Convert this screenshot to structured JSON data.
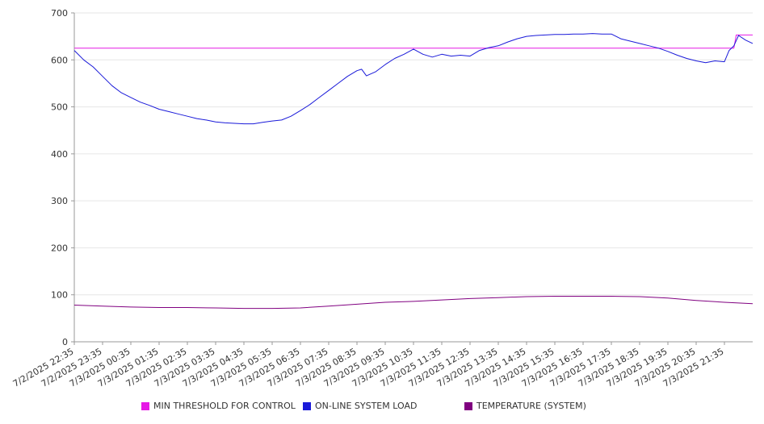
{
  "chart_data": {
    "type": "line",
    "title": "",
    "xlabel": "",
    "ylabel": "",
    "ylim": [
      0,
      700
    ],
    "y_ticks": [
      0,
      100,
      200,
      300,
      400,
      500,
      600,
      700
    ],
    "x_tick_labels": [
      "7/2/2025 22:35",
      "7/2/2025 23:35",
      "7/3/2025 00:35",
      "7/3/2025 01:35",
      "7/3/2025 02:35",
      "7/3/2025 03:35",
      "7/3/2025 04:35",
      "7/3/2025 05:35",
      "7/3/2025 06:35",
      "7/3/2025 07:35",
      "7/3/2025 08:35",
      "7/3/2025 09:35",
      "7/3/2025 10:35",
      "7/3/2025 11:35",
      "7/3/2025 12:35",
      "7/3/2025 13:35",
      "7/3/2025 14:35",
      "7/3/2025 15:35",
      "7/3/2025 16:35",
      "7/3/2025 17:35",
      "7/3/2025 18:35",
      "7/3/2025 19:35",
      "7/3/2025 20:35",
      "7/3/2025 21:35"
    ],
    "grid": true,
    "legend_position": "bottom",
    "series": [
      {
        "name": "MIN THRESHOLD FOR CONTROL",
        "color": "#e619e6",
        "points": [
          [
            "7/2/2025 22:35",
            625
          ],
          [
            "7/3/2025 21:35",
            625
          ],
          [
            "7/3/2025 21:55",
            625
          ],
          [
            "7/3/2025 22:00",
            653
          ],
          [
            "7/3/2025 22:35",
            653
          ]
        ]
      },
      {
        "name": "ON-LINE SYSTEM LOAD",
        "color": "#1a1ad9",
        "points": [
          [
            "7/2/2025 22:35",
            620
          ],
          [
            "7/2/2025 22:55",
            600
          ],
          [
            "7/2/2025 23:15",
            585
          ],
          [
            "7/2/2025 23:35",
            565
          ],
          [
            "7/2/2025 23:55",
            545
          ],
          [
            "7/3/2025 00:15",
            530
          ],
          [
            "7/3/2025 00:35",
            520
          ],
          [
            "7/3/2025 00:55",
            510
          ],
          [
            "7/3/2025 01:15",
            503
          ],
          [
            "7/3/2025 01:35",
            495
          ],
          [
            "7/3/2025 01:55",
            490
          ],
          [
            "7/3/2025 02:15",
            485
          ],
          [
            "7/3/2025 02:35",
            480
          ],
          [
            "7/3/2025 02:55",
            475
          ],
          [
            "7/3/2025 03:15",
            472
          ],
          [
            "7/3/2025 03:35",
            468
          ],
          [
            "7/3/2025 03:55",
            466
          ],
          [
            "7/3/2025 04:15",
            465
          ],
          [
            "7/3/2025 04:35",
            464
          ],
          [
            "7/3/2025 04:55",
            464
          ],
          [
            "7/3/2025 05:15",
            467
          ],
          [
            "7/3/2025 05:35",
            470
          ],
          [
            "7/3/2025 05:55",
            472
          ],
          [
            "7/3/2025 06:15",
            480
          ],
          [
            "7/3/2025 06:35",
            492
          ],
          [
            "7/3/2025 06:55",
            505
          ],
          [
            "7/3/2025 07:15",
            520
          ],
          [
            "7/3/2025 07:35",
            535
          ],
          [
            "7/3/2025 07:55",
            550
          ],
          [
            "7/3/2025 08:15",
            565
          ],
          [
            "7/3/2025 08:35",
            577
          ],
          [
            "7/3/2025 08:45",
            580
          ],
          [
            "7/3/2025 08:55",
            566
          ],
          [
            "7/3/2025 09:15",
            575
          ],
          [
            "7/3/2025 09:35",
            590
          ],
          [
            "7/3/2025 09:55",
            603
          ],
          [
            "7/3/2025 10:15",
            612
          ],
          [
            "7/3/2025 10:35",
            623
          ],
          [
            "7/3/2025 10:55",
            612
          ],
          [
            "7/3/2025 11:15",
            606
          ],
          [
            "7/3/2025 11:35",
            612
          ],
          [
            "7/3/2025 11:55",
            608
          ],
          [
            "7/3/2025 12:15",
            610
          ],
          [
            "7/3/2025 12:35",
            608
          ],
          [
            "7/3/2025 12:55",
            620
          ],
          [
            "7/3/2025 13:15",
            626
          ],
          [
            "7/3/2025 13:35",
            630
          ],
          [
            "7/3/2025 13:55",
            638
          ],
          [
            "7/3/2025 14:15",
            645
          ],
          [
            "7/3/2025 14:35",
            650
          ],
          [
            "7/3/2025 14:55",
            652
          ],
          [
            "7/3/2025 15:15",
            653
          ],
          [
            "7/3/2025 15:35",
            654
          ],
          [
            "7/3/2025 15:55",
            654
          ],
          [
            "7/3/2025 16:15",
            655
          ],
          [
            "7/3/2025 16:35",
            655
          ],
          [
            "7/3/2025 16:55",
            656
          ],
          [
            "7/3/2025 17:15",
            655
          ],
          [
            "7/3/2025 17:35",
            655
          ],
          [
            "7/3/2025 17:55",
            645
          ],
          [
            "7/3/2025 18:15",
            640
          ],
          [
            "7/3/2025 18:35",
            635
          ],
          [
            "7/3/2025 18:55",
            630
          ],
          [
            "7/3/2025 19:15",
            625
          ],
          [
            "7/3/2025 19:35",
            618
          ],
          [
            "7/3/2025 19:55",
            610
          ],
          [
            "7/3/2025 20:15",
            603
          ],
          [
            "7/3/2025 20:35",
            598
          ],
          [
            "7/3/2025 20:55",
            594
          ],
          [
            "7/3/2025 21:15",
            598
          ],
          [
            "7/3/2025 21:35",
            596
          ],
          [
            "7/3/2025 21:45",
            620
          ],
          [
            "7/3/2025 21:55",
            630
          ],
          [
            "7/3/2025 22:05",
            652
          ],
          [
            "7/3/2025 22:20",
            642
          ],
          [
            "7/3/2025 22:35",
            635
          ]
        ]
      },
      {
        "name": "TEMPERATURE (SYSTEM)",
        "color": "#800080",
        "points": [
          [
            "7/2/2025 22:35",
            78
          ],
          [
            "7/2/2025 23:35",
            76
          ],
          [
            "7/3/2025 00:35",
            74
          ],
          [
            "7/3/2025 01:35",
            73
          ],
          [
            "7/3/2025 02:35",
            73
          ],
          [
            "7/3/2025 03:35",
            72
          ],
          [
            "7/3/2025 04:35",
            71
          ],
          [
            "7/3/2025 05:35",
            71
          ],
          [
            "7/3/2025 06:35",
            72
          ],
          [
            "7/3/2025 07:35",
            76
          ],
          [
            "7/3/2025 08:35",
            80
          ],
          [
            "7/3/2025 09:35",
            84
          ],
          [
            "7/3/2025 10:35",
            86
          ],
          [
            "7/3/2025 11:35",
            89
          ],
          [
            "7/3/2025 12:35",
            92
          ],
          [
            "7/3/2025 13:35",
            94
          ],
          [
            "7/3/2025 14:35",
            96
          ],
          [
            "7/3/2025 15:35",
            97
          ],
          [
            "7/3/2025 16:35",
            97
          ],
          [
            "7/3/2025 17:35",
            97
          ],
          [
            "7/3/2025 18:35",
            96
          ],
          [
            "7/3/2025 19:35",
            93
          ],
          [
            "7/3/2025 20:35",
            88
          ],
          [
            "7/3/2025 21:35",
            84
          ],
          [
            "7/3/2025 22:35",
            81
          ]
        ]
      }
    ]
  }
}
